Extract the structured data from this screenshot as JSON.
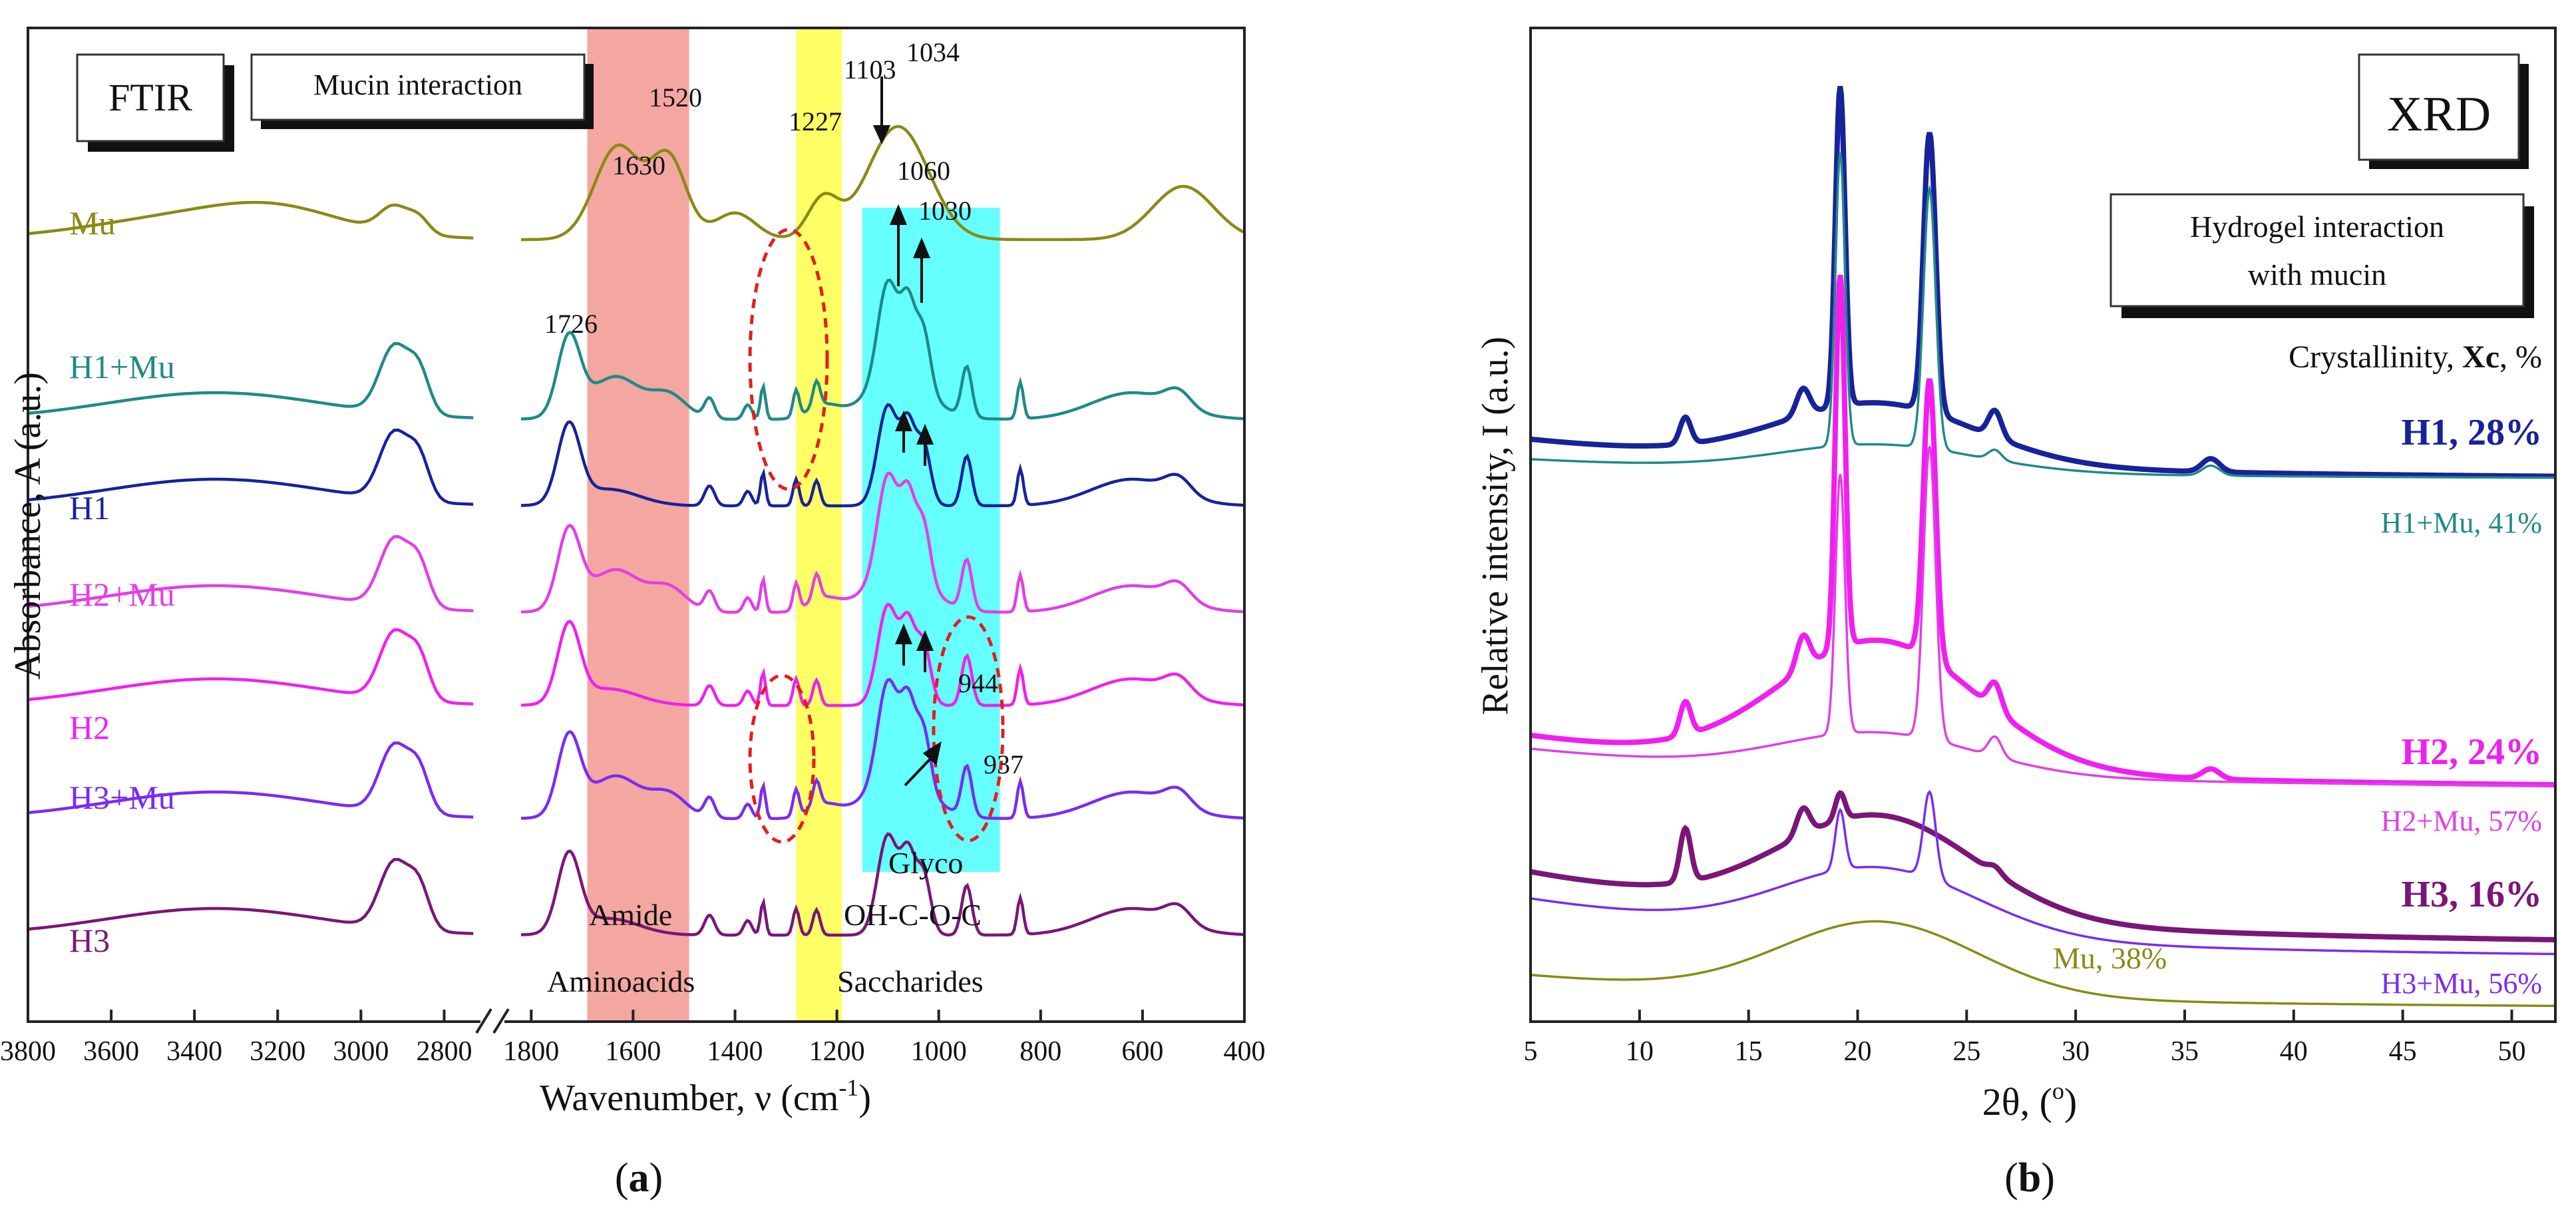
{
  "chart_data": [
    {
      "type": "line",
      "panel_label_pre": "(",
      "panel_label": "a",
      "panel_label_post": ")",
      "title_box": "FTIR",
      "subtitle_box": "Mucin interaction",
      "xlabel_pre": "Wavenumber, ν (cm",
      "xlabel_sup": "-1",
      "xlabel_post": ")",
      "ylabel": "Absorbance, A (a.u.)",
      "x_axis_break": true,
      "x_ticks_left": [
        "3800",
        "3600",
        "3400",
        "3200",
        "3000",
        "2800"
      ],
      "x_ticks_right": [
        "1800",
        "1600",
        "1400",
        "1200",
        "1000",
        "800",
        "600",
        "400"
      ],
      "xlim_left": [
        3800,
        2700
      ],
      "xlim_right": [
        1850,
        400
      ],
      "bands": [
        {
          "name": "Amide",
          "from": 1690,
          "to": 1490,
          "color": "#f4a6a0"
        },
        {
          "name": "OH-C-O-C",
          "from": 1280,
          "to": 1190,
          "color": "#ffff66"
        },
        {
          "name": "Glyco",
          "from": 1150,
          "to": 880,
          "color": "#66ffff"
        }
      ],
      "band_texts": {
        "amide": "Amide",
        "aminoacids": "Aminoacids",
        "ohcoc": "OH-C-O-C",
        "saccharides": "Saccharides",
        "glyco": "Glyco"
      },
      "peak_labels": {
        "p1630": "1630",
        "p1520": "1520",
        "p1227": "1227",
        "p1103": "1103",
        "p1034": "1034",
        "p1060": "1060",
        "p1030": "1030",
        "p1726": "1726",
        "p944": "944",
        "p937": "937"
      },
      "series": [
        {
          "name": "Mu",
          "color": "#8a8a14",
          "offset": 0.0
        },
        {
          "name": "H1+Mu",
          "color": "#1f8a87",
          "offset": 1.0
        },
        {
          "name": "H1",
          "color": "#18229a",
          "offset": 2.0
        },
        {
          "name": "H2+Mu",
          "color": "#e040e6",
          "offset": 3.0
        },
        {
          "name": "H2",
          "color": "#f01ff0",
          "offset": 4.0
        },
        {
          "name": "H3+Mu",
          "color": "#7a2cf0",
          "offset": 5.0
        },
        {
          "name": "H3",
          "color": "#7a1678",
          "offset": 6.0
        }
      ]
    },
    {
      "type": "line",
      "panel_label_pre": "(",
      "panel_label": "b",
      "panel_label_post": ")",
      "title_box": "XRD",
      "subtitle_line1": "Hydrogel interaction",
      "subtitle_line2": "with mucin",
      "crystallinity_pre": "Crystallinity, ",
      "crystallinity_bold": "Xc",
      "crystallinity_post": ", %",
      "xlabel": "2θ, (",
      "xlabel_sup": "o",
      "xlabel_post": ")",
      "ylabel": "Relative intensity, I (a.u.)",
      "xlim": [
        5,
        52
      ],
      "x_ticks": [
        "5",
        "10",
        "15",
        "20",
        "25",
        "30",
        "35",
        "40",
        "45",
        "50"
      ],
      "series": [
        {
          "name": "H1",
          "label": "H1, 28%",
          "xc": 28,
          "color": "#18229a",
          "bold": true
        },
        {
          "name": "H1+Mu",
          "label": "H1+Mu, 41%",
          "xc": 41,
          "color": "#1f8a87",
          "bold": false
        },
        {
          "name": "H2",
          "label": "H2, 24%",
          "xc": 24,
          "color": "#f01ff0",
          "bold": true
        },
        {
          "name": "H2+Mu",
          "label": "H2+Mu, 57%",
          "xc": 57,
          "color": "#e040e6",
          "bold": false
        },
        {
          "name": "H3",
          "label": "H3, 16%",
          "xc": 16,
          "color": "#7a1678",
          "bold": true
        },
        {
          "name": "H3+Mu",
          "label": "H3+Mu, 56%",
          "xc": 56,
          "color": "#7a2cf0",
          "bold": false
        },
        {
          "name": "Mu",
          "label": "Mu, 38%",
          "xc": 38,
          "color": "#8a8a14",
          "bold": false
        }
      ]
    }
  ]
}
